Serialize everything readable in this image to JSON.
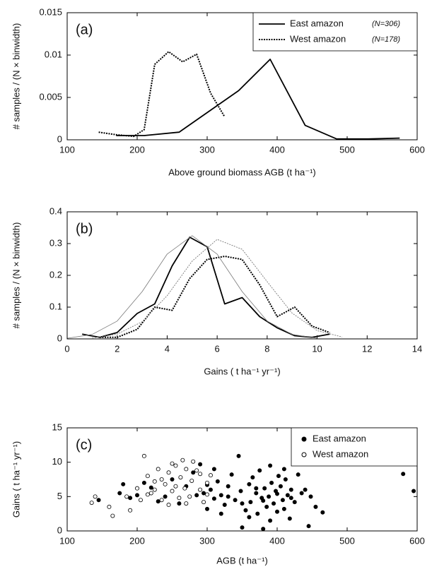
{
  "chart_data": [
    {
      "type": "line",
      "panel_label": "(a)",
      "xlabel": "Above ground biomass AGB (t ha⁻¹)",
      "ylabel": "# samples / (N × binwidth)",
      "xlim": [
        100,
        600
      ],
      "xticks": [
        100,
        200,
        300,
        400,
        500,
        600
      ],
      "ylim": [
        0,
        0.015
      ],
      "yticks": [
        0,
        0.005,
        0.01,
        0.015
      ],
      "legend": "upper right",
      "series": [
        {
          "name": "East amazon",
          "sample_size": "(N=306)",
          "color": "#000000",
          "line_style": "solid",
          "line_width": 1.8,
          "x": [
            170,
            210,
            260,
            345,
            390,
            440,
            485,
            530,
            575
          ],
          "values": [
            0.0005,
            0.0005,
            0.0009,
            0.0058,
            0.0095,
            0.0017,
            0.0001,
            0.0001,
            0.0002
          ]
        },
        {
          "name": "West amazon",
          "sample_size": "(N=178)",
          "color": "#000000",
          "line_style": "dotted",
          "line_width": 2,
          "x": [
            145,
            170,
            195,
            210,
            225,
            245,
            265,
            285,
            305,
            325
          ],
          "values": [
            0.0009,
            0.0006,
            0.0004,
            0.0012,
            0.0089,
            0.0104,
            0.0092,
            0.0101,
            0.0055,
            0.0027
          ]
        }
      ]
    },
    {
      "type": "line",
      "panel_label": "(b)",
      "xlabel": "Gains ( t ha⁻¹ yr⁻¹)",
      "ylabel": "# samples / (N × binwidth)",
      "xlim": [
        0,
        14
      ],
      "xticks": [
        0,
        2,
        4,
        6,
        8,
        10,
        12,
        14
      ],
      "ylim": [
        0,
        0.4
      ],
      "yticks": [
        0,
        0.1,
        0.2,
        0.3,
        0.4
      ],
      "series": [
        {
          "color": "#000000",
          "line_style": "solid",
          "line_width": 1.8,
          "x": [
            0.6,
            1.3,
            2.0,
            2.8,
            3.5,
            4.2,
            4.9,
            5.6,
            6.3,
            7.0,
            7.7,
            8.4,
            9.1,
            9.8,
            10.5
          ],
          "values": [
            0.015,
            0.005,
            0.02,
            0.08,
            0.11,
            0.23,
            0.32,
            0.29,
            0.11,
            0.13,
            0.07,
            0.035,
            0.01,
            0.005,
            0.015
          ]
        },
        {
          "color": "#000000",
          "line_style": "dotted",
          "line_width": 2,
          "x": [
            1.3,
            2.0,
            2.8,
            3.5,
            4.2,
            4.9,
            5.6,
            6.3,
            7.0,
            7.7,
            8.4,
            9.1,
            9.8,
            10.5
          ],
          "values": [
            0.005,
            0.005,
            0.03,
            0.1,
            0.09,
            0.19,
            0.25,
            0.26,
            0.25,
            0.17,
            0.07,
            0.1,
            0.04,
            0.02
          ]
        },
        {
          "color": "#777777",
          "line_style": "solid",
          "line_width": 0.8,
          "x": [
            0,
            1,
            2,
            3,
            4,
            5,
            6,
            7,
            8,
            9,
            10
          ],
          "values": [
            0.002,
            0.014,
            0.056,
            0.149,
            0.267,
            0.325,
            0.267,
            0.149,
            0.056,
            0.014,
            0.002
          ]
        },
        {
          "color": "#777777",
          "line_style": "dotted",
          "line_width": 0.9,
          "x": [
            1,
            2,
            3,
            4,
            5,
            6,
            7,
            8,
            9,
            10,
            11
          ],
          "values": [
            0.003,
            0.015,
            0.054,
            0.136,
            0.245,
            0.313,
            0.282,
            0.18,
            0.081,
            0.026,
            0.006
          ]
        }
      ]
    },
    {
      "type": "scatter",
      "panel_label": "(c)",
      "xlabel": "AGB (t ha⁻¹)",
      "ylabel": "Gains ( t ha⁻¹ yr⁻¹)",
      "xlim": [
        100,
        600
      ],
      "xticks": [
        100,
        200,
        300,
        400,
        500,
        600
      ],
      "ylim": [
        0,
        15
      ],
      "yticks": [
        0,
        5,
        10,
        15
      ],
      "legend": "upper right",
      "series": [
        {
          "name": "East amazon",
          "color": "#000000",
          "marker": "filled",
          "x": [
            145,
            175,
            180,
            190,
            200,
            210,
            220,
            230,
            240,
            250,
            260,
            270,
            280,
            290,
            295,
            300,
            305,
            310,
            315,
            320,
            325,
            330,
            335,
            340,
            345,
            348,
            350,
            355,
            360,
            362,
            365,
            370,
            372,
            375,
            378,
            380,
            382,
            385,
            388,
            390,
            392,
            395,
            398,
            400,
            402,
            405,
            408,
            410,
            412,
            415,
            418,
            420,
            425,
            430,
            435,
            440,
            445,
            448,
            455,
            465,
            580,
            595,
            310,
            320,
            360,
            390,
            410,
            350,
            370,
            330,
            400,
            380,
            420,
            300,
            285
          ],
          "values": [
            4.5,
            5.5,
            6.8,
            4.8,
            5.2,
            7.0,
            6.3,
            4.3,
            5.0,
            7.5,
            4.0,
            6.5,
            8.5,
            9.7,
            5.5,
            3.2,
            6.0,
            4.7,
            7.2,
            5.2,
            3.8,
            6.5,
            8.2,
            4.5,
            10.9,
            5.8,
            0.5,
            3.0,
            6.8,
            4.2,
            7.8,
            5.5,
            2.5,
            8.8,
            4.8,
            0.3,
            6.2,
            3.5,
            5.0,
            9.5,
            7.0,
            4.0,
            5.8,
            2.8,
            8.0,
            6.5,
            4.5,
            3.2,
            7.5,
            5.2,
            1.8,
            6.0,
            4.2,
            8.2,
            5.5,
            6.0,
            0.7,
            5.0,
            3.5,
            2.7,
            8.3,
            5.8,
            9.0,
            2.5,
            2.0,
            1.5,
            9.0,
            4.0,
            6.2,
            5.0,
            5.4,
            4.4,
            4.8,
            6.7,
            5.2
          ]
        },
        {
          "name": "West amazon",
          "color": "#000000",
          "marker": "open",
          "x": [
            135,
            140,
            160,
            165,
            185,
            190,
            200,
            210,
            215,
            220,
            225,
            230,
            235,
            240,
            245,
            250,
            255,
            260,
            262,
            265,
            268,
            270,
            275,
            278,
            280,
            285,
            290,
            295,
            300,
            305,
            205,
            215,
            245,
            255,
            235,
            225,
            250,
            270,
            290,
            300
          ],
          "values": [
            4.1,
            5.0,
            3.5,
            2.2,
            5.0,
            3.0,
            6.2,
            10.9,
            8.0,
            5.5,
            7.2,
            9.0,
            4.5,
            6.8,
            8.5,
            5.8,
            9.5,
            4.8,
            7.8,
            10.3,
            6.2,
            9.0,
            5.0,
            7.3,
            10.1,
            8.8,
            6.0,
            4.2,
            7.0,
            8.1,
            4.5,
            5.3,
            3.8,
            6.5,
            7.5,
            6.0,
            9.8,
            4.0,
            8.3,
            5.3
          ]
        }
      ]
    }
  ]
}
